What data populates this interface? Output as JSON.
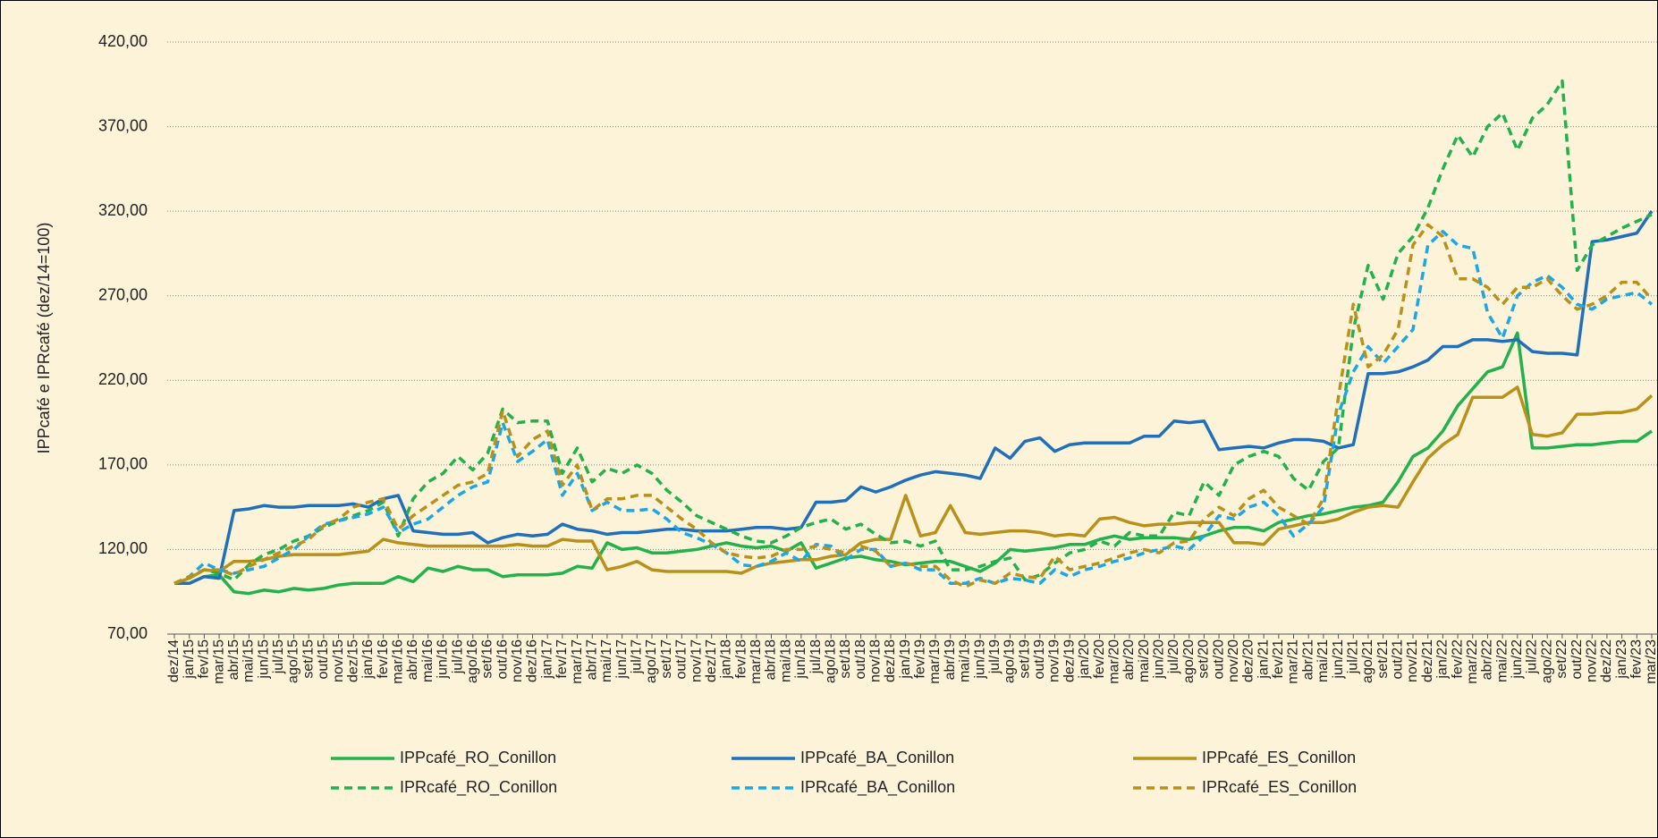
{
  "chart_data": {
    "type": "line",
    "y_label": "IPPcafé e IPRcafé (dez/14=100)",
    "categories": [
      "dez/14",
      "jan/15",
      "fev/15",
      "mar/15",
      "abr/15",
      "mai/15",
      "jun/15",
      "jul/15",
      "ago/15",
      "set/15",
      "out/15",
      "nov/15",
      "dez/15",
      "jan/16",
      "fev/16",
      "mar/16",
      "abr/16",
      "mai/16",
      "jun/16",
      "jul/16",
      "ago/16",
      "set/16",
      "out/16",
      "nov/16",
      "dez/16",
      "jan/17",
      "fev/17",
      "mar/17",
      "abr/17",
      "mai/17",
      "jun/17",
      "jul/17",
      "ago/17",
      "set/17",
      "out/17",
      "nov/17",
      "dez/17",
      "jan/18",
      "fev/18",
      "mar/18",
      "abr/18",
      "mai/18",
      "jun/18",
      "jul/18",
      "ago/18",
      "set/18",
      "out/18",
      "nov/18",
      "dez/18",
      "jan/19",
      "fev/19",
      "mar/19",
      "abr/19",
      "mai/19",
      "jun/19",
      "jul/19",
      "ago/19",
      "set/19",
      "out/19",
      "nov/19",
      "dez/19",
      "jan/20",
      "fev/20",
      "mar/20",
      "abr/20",
      "mai/20",
      "jun/20",
      "jul/20",
      "ago/20",
      "set/20",
      "out/20",
      "nov/20",
      "dez/20",
      "jan/21",
      "fev/21",
      "mar/21",
      "abr/21",
      "mai/21",
      "jun/21",
      "jul/21",
      "ago/21",
      "set/21",
      "out/21",
      "nov/21",
      "dez/21",
      "jan/22",
      "fev/22",
      "mar/22",
      "abr/22",
      "mai/22",
      "jun/22",
      "jul/22",
      "ago/22",
      "set/22",
      "out/22",
      "nov/22",
      "dez/22",
      "jan/23",
      "fev/23",
      "mar/23"
    ],
    "series": [
      {
        "name": "IPPcafé_RO_Conillon",
        "color": "#22b14c",
        "line_style": "solid",
        "values": [
          100,
          100,
          104,
          105,
          95,
          94,
          96,
          95,
          97,
          96,
          97,
          99,
          100,
          100,
          100,
          104,
          101,
          109,
          107,
          110,
          108,
          108,
          104,
          105,
          105,
          105,
          106,
          110,
          109,
          124,
          120,
          121,
          118,
          118,
          119,
          120,
          122,
          124,
          122,
          121,
          122,
          119,
          124,
          109,
          112,
          115,
          116,
          114,
          113,
          111,
          112,
          113,
          113,
          110,
          107,
          112,
          120,
          119,
          120,
          121,
          123,
          123,
          126,
          128,
          126,
          127,
          127,
          127,
          126,
          128,
          131,
          133,
          133,
          131,
          136,
          138,
          140,
          141,
          143,
          145,
          146,
          148,
          160,
          175,
          180,
          190,
          205,
          215,
          225,
          228,
          248,
          180,
          180,
          181,
          182,
          182,
          183,
          184,
          184,
          190
        ]
      },
      {
        "name": "IPPcafé_BA_Conillon",
        "color": "#1f6fba",
        "line_style": "solid",
        "values": [
          100,
          100,
          104,
          103,
          143,
          144,
          146,
          145,
          145,
          146,
          146,
          146,
          147,
          145,
          150,
          152,
          131,
          130,
          129,
          129,
          130,
          124,
          127,
          129,
          128,
          129,
          135,
          132,
          131,
          129,
          130,
          130,
          131,
          132,
          132,
          131,
          131,
          131,
          132,
          133,
          133,
          132,
          133,
          148,
          148,
          149,
          157,
          154,
          157,
          161,
          164,
          166,
          165,
          164,
          162,
          180,
          174,
          184,
          186,
          178,
          182,
          183,
          183,
          183,
          183,
          187,
          187,
          196,
          195,
          196,
          179,
          180,
          181,
          180,
          183,
          185,
          185,
          184,
          180,
          182,
          224,
          224,
          225,
          228,
          232,
          240,
          240,
          244,
          244,
          243,
          244,
          237,
          236,
          236,
          235,
          302,
          303,
          305,
          307,
          320
        ]
      },
      {
        "name": "IPPcafé_ES_Conillon",
        "color": "#b8911b",
        "line_style": "solid",
        "values": [
          100,
          103,
          108,
          107,
          113,
          113,
          114,
          116,
          117,
          117,
          117,
          117,
          118,
          119,
          126,
          124,
          123,
          122,
          122,
          122,
          122,
          122,
          122,
          123,
          122,
          122,
          126,
          125,
          125,
          108,
          110,
          113,
          108,
          107,
          107,
          107,
          107,
          107,
          106,
          110,
          112,
          113,
          114,
          114,
          116,
          117,
          124,
          126,
          126,
          152,
          128,
          130,
          146,
          130,
          129,
          130,
          131,
          131,
          130,
          128,
          129,
          128,
          138,
          139,
          136,
          134,
          135,
          135,
          136,
          136,
          136,
          124,
          124,
          123,
          132,
          134,
          136,
          136,
          138,
          142,
          145,
          146,
          145,
          160,
          174,
          182,
          188,
          210,
          210,
          210,
          216,
          188,
          187,
          189,
          200,
          200,
          201,
          201,
          203,
          211
        ]
      },
      {
        "name": "IPRcafé_RO_Conillon",
        "color": "#22b14c",
        "line_style": "dashed",
        "values": [
          100,
          104,
          108,
          106,
          102,
          111,
          117,
          120,
          125,
          128,
          133,
          137,
          140,
          143,
          148,
          128,
          150,
          160,
          165,
          175,
          167,
          177,
          203,
          195,
          196,
          196,
          165,
          180,
          160,
          168,
          165,
          170,
          165,
          155,
          148,
          140,
          136,
          132,
          128,
          125,
          124,
          128,
          133,
          136,
          138,
          132,
          135,
          129,
          124,
          125,
          122,
          125,
          108,
          108,
          110,
          113,
          115,
          102,
          105,
          112,
          118,
          120,
          125,
          122,
          130,
          128,
          128,
          142,
          140,
          160,
          152,
          170,
          175,
          178,
          175,
          162,
          155,
          172,
          180,
          250,
          288,
          268,
          295,
          305,
          322,
          345,
          365,
          352,
          370,
          378,
          356,
          375,
          383,
          397,
          285,
          300,
          305,
          310,
          314,
          318
        ]
      },
      {
        "name": "IPRcafé_BA_Conillon",
        "color": "#1ba7e6",
        "line_style": "dashed",
        "values": [
          100,
          104,
          112,
          108,
          106,
          108,
          110,
          115,
          120,
          128,
          135,
          137,
          139,
          141,
          145,
          130,
          135,
          138,
          145,
          152,
          157,
          160,
          195,
          172,
          178,
          185,
          152,
          165,
          143,
          148,
          143,
          143,
          144,
          138,
          130,
          127,
          123,
          118,
          111,
          110,
          113,
          118,
          113,
          123,
          122,
          114,
          120,
          120,
          110,
          112,
          108,
          108,
          100,
          100,
          103,
          100,
          103,
          102,
          100,
          108,
          104,
          108,
          110,
          113,
          115,
          118,
          120,
          122,
          120,
          128,
          140,
          138,
          145,
          148,
          140,
          128,
          135,
          145,
          200,
          225,
          240,
          230,
          240,
          250,
          300,
          308,
          300,
          298,
          260,
          245,
          270,
          278,
          282,
          275,
          265,
          262,
          268,
          270,
          272,
          265
        ]
      },
      {
        "name": "IPRcafé_ES_Conillon",
        "color": "#b8911b",
        "line_style": "dashed",
        "values": [
          100,
          104,
          108,
          108,
          105,
          110,
          114,
          118,
          122,
          126,
          134,
          138,
          145,
          148,
          150,
          132,
          140,
          146,
          152,
          158,
          160,
          165,
          202,
          175,
          185,
          190,
          158,
          170,
          143,
          150,
          150,
          152,
          152,
          145,
          138,
          132,
          124,
          118,
          116,
          115,
          116,
          120,
          120,
          122,
          120,
          118,
          122,
          119,
          110,
          112,
          110,
          110,
          102,
          98,
          102,
          100,
          106,
          104,
          103,
          116,
          108,
          110,
          112,
          115,
          118,
          120,
          118,
          124,
          125,
          138,
          145,
          140,
          150,
          155,
          145,
          140,
          135,
          150,
          210,
          265,
          228,
          235,
          250,
          300,
          312,
          305,
          280,
          280,
          275,
          265,
          275,
          275,
          280,
          270,
          262,
          265,
          270,
          278,
          278,
          268
        ]
      }
    ],
    "ylim": [
      70,
      420
    ],
    "yticks": [
      {
        "value": 70,
        "label": "70,00"
      },
      {
        "value": 120,
        "label": "120,00"
      },
      {
        "value": 170,
        "label": "170,00"
      },
      {
        "value": 220,
        "label": "220,00"
      },
      {
        "value": 270,
        "label": "270,00"
      },
      {
        "value": 320,
        "label": "320,00"
      },
      {
        "value": 370,
        "label": "370,00"
      },
      {
        "value": 420,
        "label": "420,00"
      }
    ],
    "grid": true,
    "legend": "bottom"
  }
}
